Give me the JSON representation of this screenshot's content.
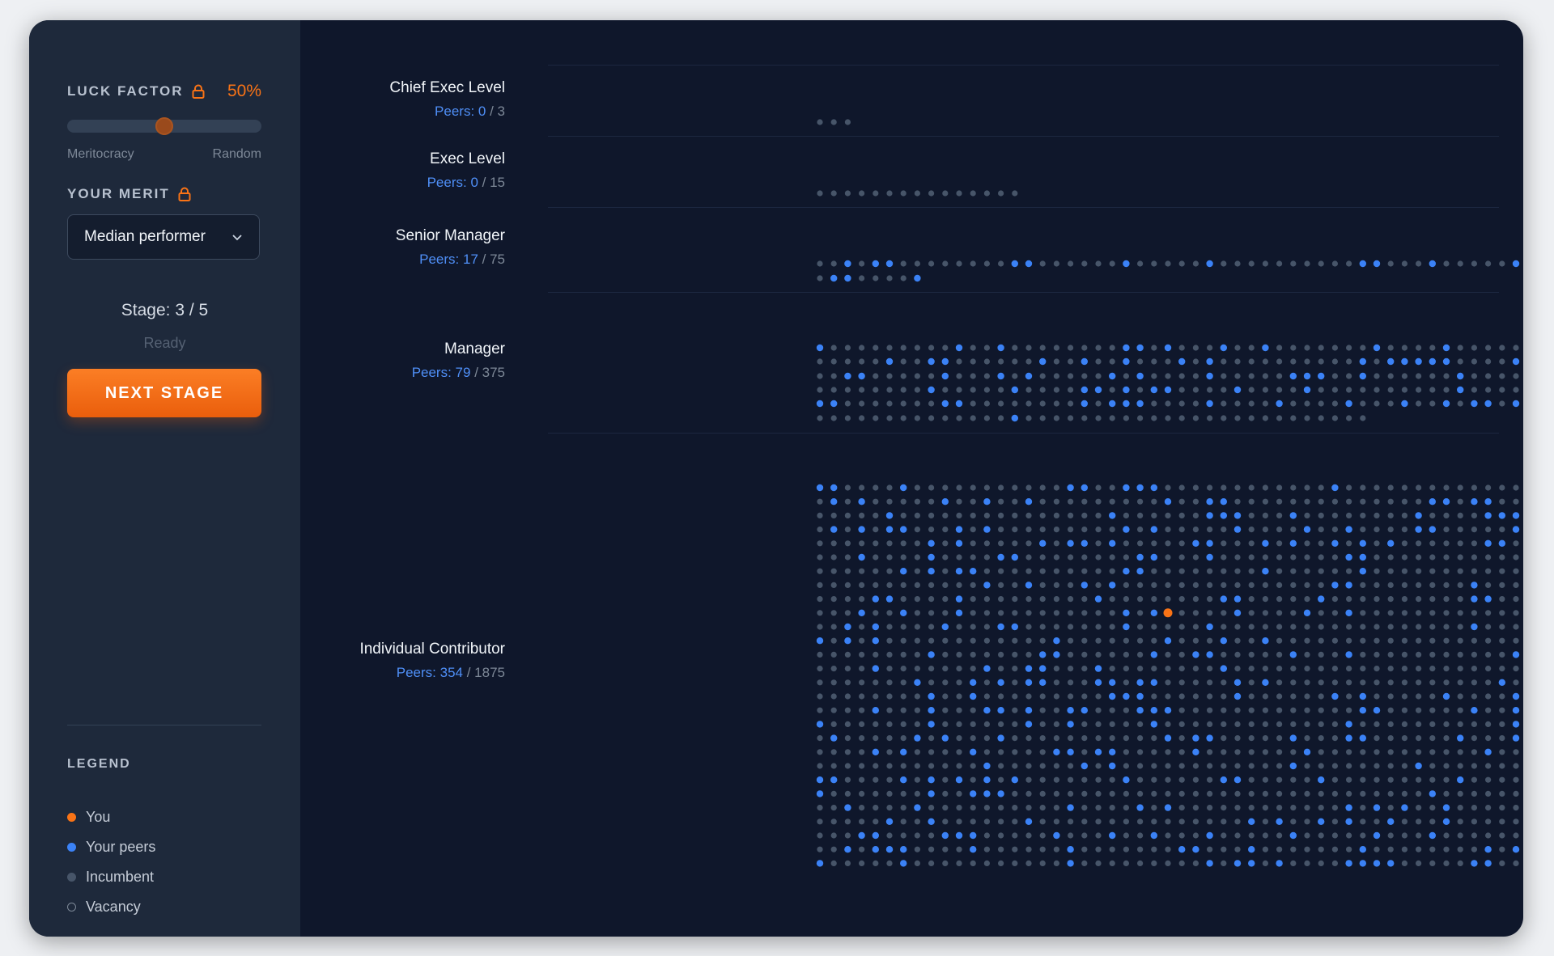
{
  "controls": {
    "luck_factor": {
      "label": "LUCK FACTOR",
      "value_text": "50%",
      "value": 0.5,
      "left_label": "Meritocracy",
      "right_label": "Random",
      "locked_icon": "lock-icon"
    },
    "merit": {
      "label": "YOUR MERIT",
      "selected": "Median performer",
      "locked_icon": "lock-icon"
    },
    "stage_text": "Stage: 3 / 5",
    "status_text": "Ready",
    "next_button": "NEXT STAGE"
  },
  "legend": {
    "title": "LEGEND",
    "items": [
      {
        "label": "You",
        "color": "#f97316",
        "style": "filled"
      },
      {
        "label": "Your peers",
        "color": "#3b82f6",
        "style": "filled"
      },
      {
        "label": "Incumbent",
        "color": "#475569",
        "style": "filled"
      },
      {
        "label": "Vacancy",
        "color": "#7d8897",
        "style": "hollow"
      }
    ]
  },
  "levels": [
    {
      "name": "Chief Exec Level",
      "peers_label": "Peers: 0",
      "peers_total": "/ 3",
      "peers": 0,
      "total": 3
    },
    {
      "name": "Exec Level",
      "peers_label": "Peers: 0",
      "peers_total": "/ 15",
      "peers": 0,
      "total": 15
    },
    {
      "name": "Senior Manager",
      "peers_label": "Peers: 17",
      "peers_total": "/ 75",
      "peers": 17,
      "total": 75
    },
    {
      "name": "Manager",
      "peers_label": "Peers: 79",
      "peers_total": "/ 375",
      "peers": 79,
      "total": 375
    },
    {
      "name": "Individual Contributor",
      "peers_label": "Peers: 354",
      "peers_total": "/ 1875",
      "peers": 354,
      "total": 1875
    }
  ],
  "colors": {
    "you": "#f97316",
    "peer": "#3b82f6",
    "incumbent": "#475569",
    "accent": "#f97316"
  }
}
